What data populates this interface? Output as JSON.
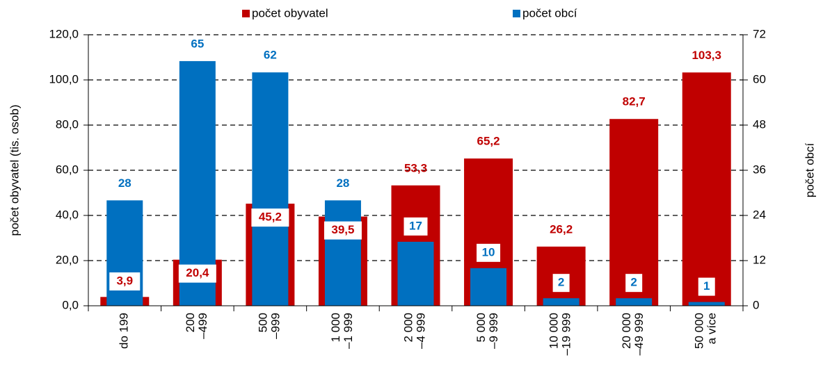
{
  "chart_data": {
    "type": "bar",
    "categories": [
      "do 199",
      "200\n–499",
      "500\n–999",
      "1 000\n–1 999",
      "2 000\n–4 999",
      "5 000\n–9 999",
      "10 000\n–19 999",
      "20 000\n–49 999",
      "50 000\na více"
    ],
    "series": [
      {
        "name": "počet obyvatel",
        "color": "#c00000",
        "values": [
          3.9,
          20.4,
          45.2,
          39.5,
          53.3,
          65.2,
          26.2,
          82.7,
          103.3
        ],
        "value_labels": [
          "3,9",
          "20,4",
          "45,2",
          "39,5",
          "53,3",
          "65,2",
          "26,2",
          "82,7",
          "103,3"
        ]
      },
      {
        "name": "počet obcí",
        "color": "#0070c0",
        "axis": "y2",
        "values": [
          28,
          65,
          62,
          28,
          17,
          10,
          2,
          2,
          1
        ]
      }
    ],
    "ylabel": "počet obyvatel (tis. osob)",
    "y2label": "počet obcí",
    "ylim": [
      0,
      120
    ],
    "yticks": [
      {
        "value": 0,
        "label": "0,0"
      },
      {
        "value": 20,
        "label": "20,0"
      },
      {
        "value": 40,
        "label": "40,0"
      },
      {
        "value": 60,
        "label": "60,0"
      },
      {
        "value": 80,
        "label": "80,0"
      },
      {
        "value": 100,
        "label": "100,0"
      },
      {
        "value": 120,
        "label": "120,0"
      }
    ],
    "y2lim": [
      0,
      72
    ],
    "y2ticks": [
      0,
      12,
      24,
      36,
      48,
      60,
      72
    ],
    "grid": true,
    "legend": "top"
  }
}
